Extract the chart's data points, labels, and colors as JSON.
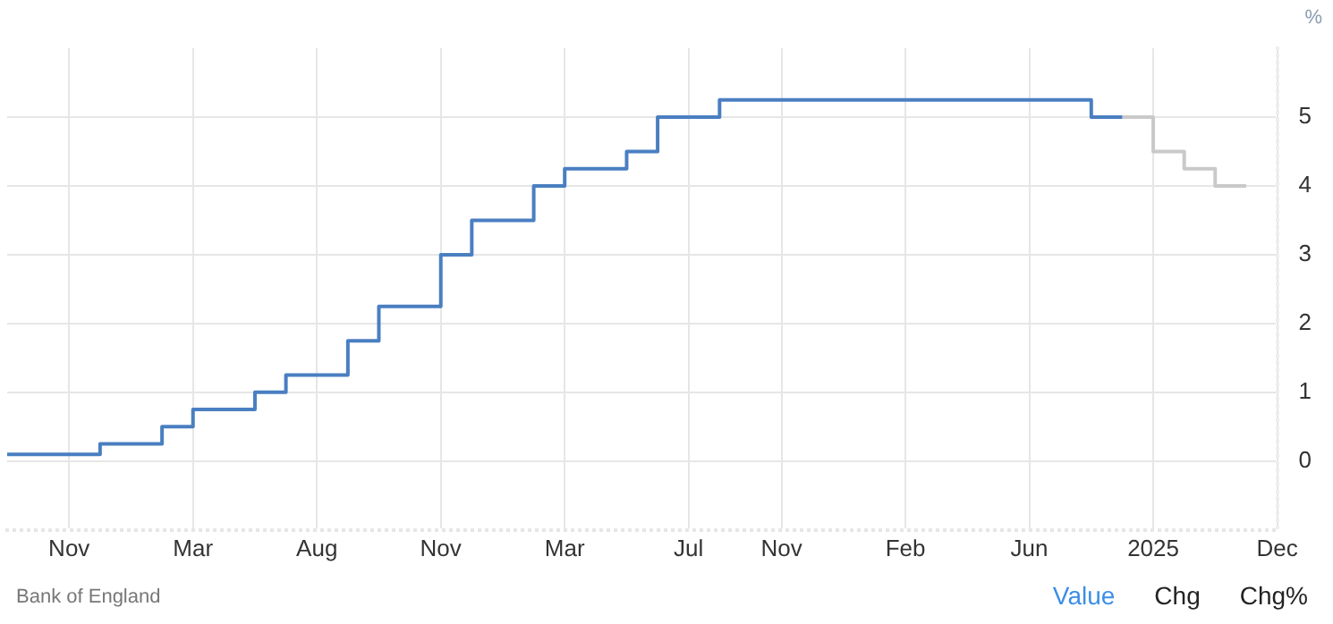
{
  "chart_data": {
    "type": "step",
    "ylabel": "%",
    "annotations": [
      "Bank of England",
      "Value",
      "Chg",
      "Chg%"
    ],
    "categories": [
      null,
      null,
      "Nov",
      null,
      null,
      null,
      "Mar",
      null,
      null,
      null,
      "Aug",
      null,
      null,
      null,
      "Nov",
      null,
      null,
      null,
      "Mar",
      null,
      null,
      null,
      "Jul",
      null,
      null,
      "Nov",
      null,
      null,
      null,
      "Feb",
      null,
      null,
      null,
      "Jun",
      null,
      null,
      null,
      "2025",
      null,
      null,
      null,
      "Dec"
    ],
    "series": [
      {
        "color": "#4a7fc1",
        "values": [
          0.1,
          0.1,
          0.1,
          0.25,
          0.25,
          0.5,
          0.75,
          0.75,
          1,
          1.25,
          1.25,
          1.75,
          2.25,
          2.25,
          3,
          3.5,
          3.5,
          4,
          4.25,
          4.25,
          4.5,
          5,
          5,
          5.25,
          5.25,
          5.25,
          5.25,
          5.25,
          5.25,
          5.25,
          5.25,
          5.25,
          5.25,
          5.25,
          5.25,
          5,
          5,
          null,
          null,
          null,
          null,
          null
        ]
      },
      {
        "color": "#c9c9c9",
        "values": [
          null,
          null,
          null,
          null,
          null,
          null,
          null,
          null,
          null,
          null,
          null,
          null,
          null,
          null,
          null,
          null,
          null,
          null,
          null,
          null,
          null,
          null,
          null,
          null,
          null,
          null,
          null,
          null,
          null,
          null,
          null,
          null,
          null,
          null,
          null,
          null,
          5,
          4.5,
          4.25,
          4,
          4,
          null
        ]
      }
    ],
    "ylim": [
      -1,
      6
    ],
    "yticks": [
      0,
      1,
      2,
      3,
      4,
      5
    ],
    "grid": true
  }
}
